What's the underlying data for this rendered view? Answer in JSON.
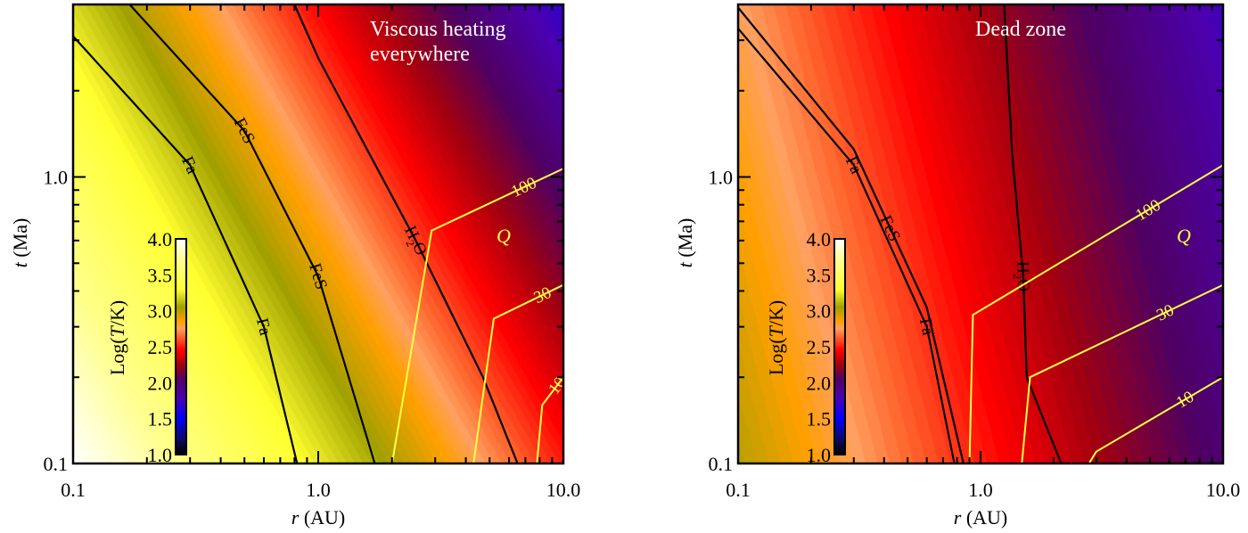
{
  "chart_data": [
    {
      "type": "heatmap",
      "id": "left",
      "annotation_lines": [
        "Viscous heating",
        "everywhere"
      ],
      "xlabel_var": "r",
      "xlabel_unit": " (AU)",
      "ylabel_var": "t",
      "ylabel_unit": " (Ma)",
      "xlim": [
        0.1,
        10.0
      ],
      "ylim": [
        0.1,
        4.0
      ],
      "xscale": "log",
      "yscale": "log",
      "x_tick_labels": [
        "0.1",
        "1.0",
        "10.0"
      ],
      "x_tick_values": [
        0.1,
        1.0,
        10.0
      ],
      "y_tick_labels": [
        "0.1",
        "1.0"
      ],
      "y_tick_values": [
        0.1,
        1.0
      ],
      "color_variable": "log10(T/K)",
      "colorbar": {
        "label_pre": "Log(",
        "label_var": "T",
        "label_post": "/K)",
        "range": [
          1.0,
          4.0
        ],
        "tick_labels": [
          "4.0",
          "3.5",
          "3.0",
          "2.5",
          "2.0",
          "1.5",
          "1.0"
        ],
        "tick_values": [
          4.0,
          3.5,
          3.0,
          2.5,
          2.0,
          1.5,
          1.0
        ]
      },
      "field_model": {
        "logT_at_r1_t1": 2.75,
        "d_logT_d_logr": -0.75,
        "d_logT_d_logt": -0.5
      },
      "contours": [
        {
          "name": "Fa",
          "color": "#000000",
          "labels": [
            "Fa",
            "Fa"
          ],
          "points": [
            [
              0.1,
              3.1
            ],
            [
              0.3,
              1.1
            ],
            [
              0.6,
              0.3
            ],
            [
              0.82,
              0.1
            ]
          ]
        },
        {
          "name": "FeS",
          "color": "#000000",
          "labels": [
            "FeS",
            "FeS"
          ],
          "points": [
            [
              0.17,
              4.0
            ],
            [
              0.5,
              1.45
            ],
            [
              1.0,
              0.45
            ],
            [
              1.7,
              0.1
            ]
          ]
        },
        {
          "name": "H2O",
          "color": "#000000",
          "labels": [
            "H2O"
          ],
          "points": [
            [
              0.8,
              4.0
            ],
            [
              1.0,
              2.6
            ],
            [
              2.5,
              0.6
            ],
            [
              4.7,
              0.2
            ],
            [
              6.5,
              0.1
            ]
          ]
        }
      ],
      "q_contours": [
        {
          "value": 100,
          "label": "100",
          "color": "#ffff44",
          "points": [
            [
              2.0,
              0.1
            ],
            [
              2.9,
              0.65
            ],
            [
              10.0,
              1.07
            ]
          ]
        },
        {
          "value": 30,
          "label": "30",
          "color": "#ffff44",
          "points": [
            [
              4.3,
              0.1
            ],
            [
              5.2,
              0.32
            ],
            [
              10.0,
              0.42
            ]
          ]
        },
        {
          "value": 10,
          "label": "10",
          "color": "#ffff44",
          "points": [
            [
              7.8,
              0.1
            ],
            [
              8.2,
              0.16
            ],
            [
              10.0,
              0.2
            ]
          ]
        }
      ],
      "q_label": "Q"
    },
    {
      "type": "heatmap",
      "id": "right",
      "annotation_lines": [
        "Dead zone"
      ],
      "xlabel_var": "r",
      "xlabel_unit": " (AU)",
      "ylabel_var": "t",
      "ylabel_unit": " (Ma)",
      "xlim": [
        0.1,
        10.0
      ],
      "ylim": [
        0.1,
        4.0
      ],
      "xscale": "log",
      "yscale": "log",
      "x_tick_labels": [
        "0.1",
        "1.0",
        "10.0"
      ],
      "x_tick_values": [
        0.1,
        1.0,
        10.0
      ],
      "y_tick_labels": [
        "0.1",
        "1.0"
      ],
      "y_tick_values": [
        0.1,
        1.0
      ],
      "color_variable": "log10(T/K)",
      "colorbar": {
        "label_pre": "Log(",
        "label_var": "T",
        "label_post": "/K)",
        "range": [
          1.0,
          4.0
        ],
        "tick_labels": [
          "4.0",
          "3.5",
          "3.0",
          "2.5",
          "2.0",
          "1.5",
          "1.0"
        ],
        "tick_values": [
          4.0,
          3.5,
          3.0,
          2.5,
          2.0,
          1.5,
          1.0
        ]
      },
      "field_model": {
        "logT_at_r1_t1": 2.35,
        "d_logT_d_logr": -0.5,
        "d_logT_d_logt": -0.15
      },
      "contours": [
        {
          "name": "Fa",
          "color": "#000000",
          "labels": [
            "Fa",
            "Fa"
          ],
          "points": [
            [
              0.1,
              3.3
            ],
            [
              0.3,
              1.1
            ],
            [
              0.6,
              0.3
            ],
            [
              0.78,
              0.1
            ]
          ]
        },
        {
          "name": "FeS",
          "color": "#000000",
          "labels": [
            "FeS"
          ],
          "points": [
            [
              0.1,
              3.9
            ],
            [
              0.3,
              1.25
            ],
            [
              0.6,
              0.35
            ],
            [
              0.85,
              0.1
            ]
          ]
        },
        {
          "name": "H2O",
          "color": "#000000",
          "labels": [
            "H2O"
          ],
          "points": [
            [
              1.25,
              4.0
            ],
            [
              1.35,
              1.2
            ],
            [
              1.5,
              0.45
            ],
            [
              1.55,
              0.2
            ],
            [
              2.15,
              0.1
            ]
          ]
        }
      ],
      "q_contours": [
        {
          "value": 100,
          "label": "100",
          "color": "#ffff44",
          "points": [
            [
              0.9,
              0.1
            ],
            [
              0.93,
              0.33
            ],
            [
              10.0,
              1.1
            ]
          ]
        },
        {
          "value": 30,
          "label": "30",
          "color": "#ffff44",
          "points": [
            [
              1.48,
              0.1
            ],
            [
              1.6,
              0.2
            ],
            [
              10.0,
              0.42
            ]
          ]
        },
        {
          "value": 10,
          "label": "10",
          "color": "#ffff44",
          "points": [
            [
              2.8,
              0.1
            ],
            [
              3.0,
              0.11
            ],
            [
              10.0,
              0.2
            ]
          ]
        }
      ],
      "q_label": "Q"
    }
  ],
  "colormap_stops": [
    {
      "v": 1.0,
      "color": "#000000"
    },
    {
      "v": 1.2,
      "color": "#0a0a60"
    },
    {
      "v": 1.5,
      "color": "#0000ff"
    },
    {
      "v": 1.8,
      "color": "#4a00b0"
    },
    {
      "v": 2.05,
      "color": "#500060"
    },
    {
      "v": 2.25,
      "color": "#a00010"
    },
    {
      "v": 2.45,
      "color": "#ff0000"
    },
    {
      "v": 2.65,
      "color": "#ff6a30"
    },
    {
      "v": 2.75,
      "color": "#ffa060"
    },
    {
      "v": 2.85,
      "color": "#ffa000"
    },
    {
      "v": 3.05,
      "color": "#a0a000"
    },
    {
      "v": 3.3,
      "color": "#ffff30"
    },
    {
      "v": 3.7,
      "color": "#ffff90"
    },
    {
      "v": 4.0,
      "color": "#ffffff"
    }
  ]
}
